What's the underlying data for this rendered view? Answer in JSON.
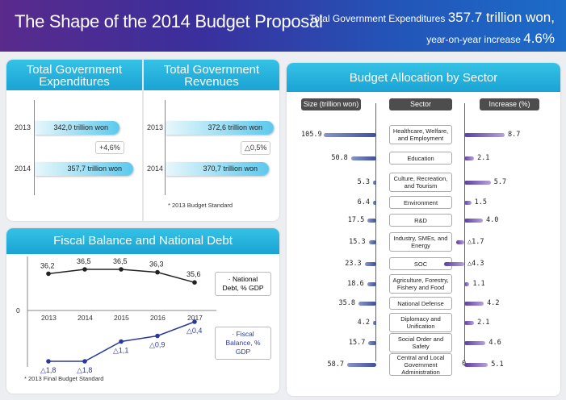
{
  "header": {
    "title": "The Shape of the 2014 Budget Proposal",
    "line1_text": "Total Government Expenditures",
    "line1_value": "357.7 trillion won,",
    "line2_text": "year-on-year increase",
    "line2_value": "4.6%"
  },
  "expenditures": {
    "title1": "Total Government",
    "title2": "Expenditures",
    "rows": [
      {
        "year": "2013",
        "label": "342,0 trillion won",
        "value": 342.0
      },
      {
        "year": "2014",
        "label": "357,7 trillion won",
        "value": 357.7
      }
    ],
    "change": "+4,6%"
  },
  "revenues": {
    "title1": "Total Government",
    "title2": "Revenues",
    "rows": [
      {
        "year": "2013",
        "label": "372,6 trillion won",
        "value": 372.6
      },
      {
        "year": "2014",
        "label": "370,7 trillion won",
        "value": 370.7
      }
    ],
    "change": "△0,5%",
    "note": "* 2013 Budget Standard"
  },
  "fiscal": {
    "title": "Fiscal Balance and National Debt",
    "note": "* 2013 Final Budget Standard",
    "zero_label": "0"
  },
  "sectors": {
    "title": "Budget Allocation by Sector",
    "size_header": "Size (trillion won)",
    "sector_header": "Sector",
    "increase_header": "Increase (%)",
    "zero_label": "0"
  },
  "colors": {
    "debt_line": "#222222",
    "balance_line": "#2b3a9a",
    "accent": "#1aa3d4",
    "size_bar": "#3e4f9e",
    "increase_bar": "#6a4aaa"
  },
  "chart_data": [
    {
      "type": "bar",
      "title": "Total Government Expenditures",
      "categories": [
        "2013",
        "2014"
      ],
      "values": [
        342.0,
        357.7
      ],
      "unit": "trillion won",
      "annotation": "+4,6%"
    },
    {
      "type": "bar",
      "title": "Total Government Revenues",
      "categories": [
        "2013",
        "2014"
      ],
      "values": [
        372.6,
        370.7
      ],
      "unit": "trillion won",
      "annotation": "△0,5%"
    },
    {
      "type": "line",
      "title": "Fiscal Balance and National Debt",
      "x": [
        "2013",
        "2014",
        "2015",
        "2016",
        "2017"
      ],
      "series": [
        {
          "name": "· National Debt, % GDP",
          "values": [
            36.2,
            36.5,
            36.5,
            36.3,
            35.6
          ],
          "labels": [
            "36,2",
            "36,5",
            "36,5",
            "36,3",
            "35,6"
          ]
        },
        {
          "name": "· Fiscal Balance, % GDP",
          "values": [
            -1.8,
            -1.8,
            -1.1,
            -0.9,
            -0.4
          ],
          "labels": [
            "△1,8",
            "△1,8",
            "△1,1",
            "△0,9",
            "△0,4"
          ]
        }
      ]
    },
    {
      "type": "bar",
      "title": "Budget Allocation by Sector",
      "categories": [
        "Healthcare, Welfare, and Employment",
        "Education",
        "Culture, Recreation, and Tourism",
        "Environment",
        "R&D",
        "Industry, SMEs, and Energy",
        "SOC",
        "Agriculture, Forestry, Fishery and Food",
        "National Defense",
        "Diplomacy and Unification",
        "Social Order and Safety",
        "Central and Local Government Administration"
      ],
      "series": [
        {
          "name": "Size (trillion won)",
          "values": [
            105.9,
            50.8,
            5.3,
            6.4,
            17.5,
            15.3,
            23.3,
            18.6,
            35.8,
            4.2,
            15.7,
            58.7
          ],
          "labels": [
            "105.9",
            "50.8",
            "5.3",
            "6.4",
            "17.5",
            "15.3",
            "23.3",
            "18.6",
            "35.8",
            "4.2",
            "15.7",
            "58.7"
          ]
        },
        {
          "name": "Increase (%)",
          "values": [
            8.7,
            2.1,
            5.7,
            1.5,
            4.0,
            -1.7,
            -4.3,
            1.1,
            4.2,
            2.1,
            4.6,
            5.1
          ],
          "labels": [
            "8.7",
            "2.1",
            "5.7",
            "1.5",
            "4.0",
            "△1.7",
            "△4.3",
            "1.1",
            "4.2",
            "2.1",
            "4.6",
            "5.1"
          ]
        }
      ]
    }
  ]
}
